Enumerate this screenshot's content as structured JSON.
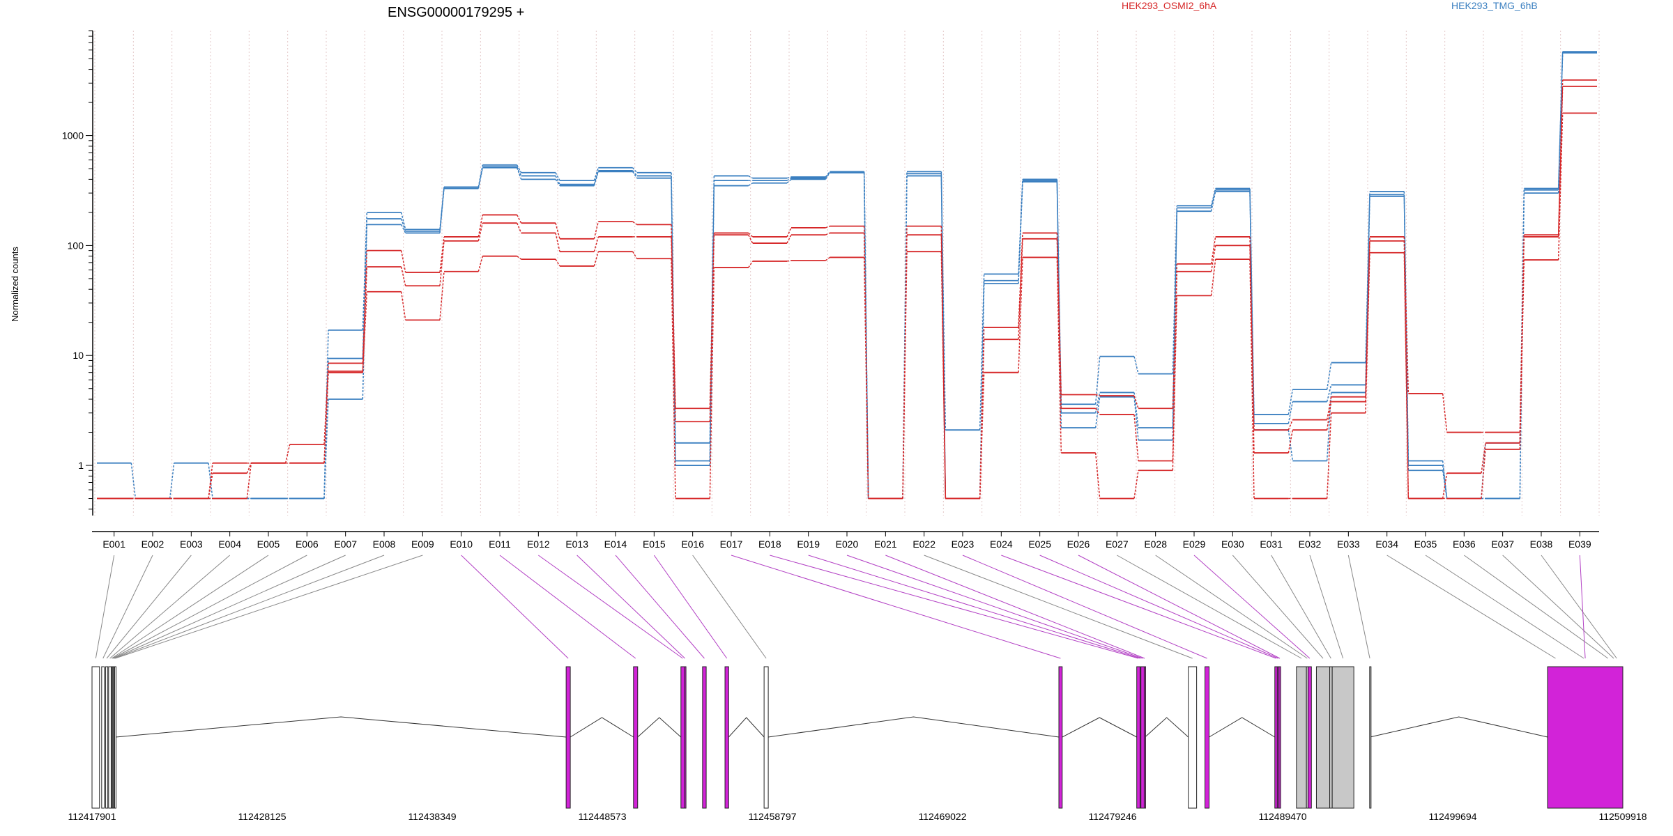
{
  "chart_data": {
    "type": "line",
    "title": "ENSG00000179295 +",
    "ylabel": "Normalized counts",
    "yscale": "log",
    "ylim": [
      0.35,
      9000
    ],
    "yticks": [
      1,
      10,
      100,
      1000
    ],
    "legend": [
      {
        "name": "HEK293_OSMI2_6hA",
        "color": "#d62728"
      },
      {
        "name": "HEK293_TMG_6hB",
        "color": "#3a7fc0"
      }
    ],
    "categories": [
      "E001",
      "E002",
      "E003",
      "E004",
      "E005",
      "E006",
      "E007",
      "E008",
      "E009",
      "E010",
      "E011",
      "E012",
      "E013",
      "E014",
      "E015",
      "E016",
      "E017",
      "E018",
      "E019",
      "E020",
      "E021",
      "E022",
      "E023",
      "E024",
      "E025",
      "E026",
      "E027",
      "E028",
      "E029",
      "E030",
      "E031",
      "E032",
      "E033",
      "E034",
      "E035",
      "E036",
      "E037",
      "E038",
      "E039"
    ],
    "series": [
      {
        "group": "HEK293_TMG_6hB",
        "color": "#3a7fc0",
        "values": [
          1.05,
          0.5,
          1.05,
          0.5,
          0.5,
          0.5,
          17,
          200,
          140,
          340,
          540,
          460,
          390,
          510,
          460,
          1.6,
          430,
          410,
          420,
          470,
          0.5,
          470,
          2.1,
          55,
          400,
          3.6,
          9.8,
          6.8,
          230,
          330,
          2.9,
          4.9,
          8.6,
          310,
          1.1,
          0.5,
          1.6,
          330,
          5800
        ]
      },
      {
        "group": "HEK293_TMG_6hB",
        "color": "#3a7fc0",
        "values": [
          0.5,
          0.5,
          0.5,
          0.5,
          0.5,
          0.5,
          9.4,
          175,
          135,
          340,
          520,
          430,
          360,
          480,
          430,
          1.1,
          390,
          390,
          410,
          460,
          0.5,
          450,
          0.5,
          48,
          390,
          3.0,
          4.6,
          2.2,
          220,
          320,
          2.4,
          3.8,
          5.4,
          290,
          1.0,
          0.5,
          0.5,
          320,
          5700
        ]
      },
      {
        "group": "HEK293_TMG_6hB",
        "color": "#3a7fc0",
        "values": [
          0.5,
          0.5,
          0.5,
          0.5,
          0.5,
          0.5,
          4.0,
          155,
          130,
          330,
          510,
          400,
          350,
          470,
          410,
          1.0,
          350,
          370,
          400,
          460,
          0.5,
          430,
          0.5,
          45,
          380,
          2.2,
          4.2,
          1.7,
          205,
          310,
          2.1,
          1.1,
          4.6,
          280,
          0.9,
          0.5,
          0.5,
          300,
          5650
        ]
      },
      {
        "group": "HEK293_OSMI2_6hA",
        "color": "#d62728",
        "values": [
          0.5,
          0.5,
          0.5,
          1.05,
          1.05,
          1.55,
          8.5,
          90,
          57,
          120,
          190,
          160,
          115,
          165,
          155,
          3.3,
          130,
          120,
          145,
          150,
          0.5,
          150,
          0.5,
          18,
          130,
          4.4,
          4.3,
          3.3,
          68,
          120,
          2.1,
          2.6,
          4.2,
          120,
          4.5,
          2.0,
          2.0,
          125,
          3200
        ]
      },
      {
        "group": "HEK293_OSMI2_6hA",
        "color": "#d62728",
        "values": [
          0.5,
          0.5,
          0.5,
          0.85,
          1.05,
          1.05,
          7.2,
          64,
          43,
          110,
          160,
          130,
          88,
          120,
          120,
          2.5,
          125,
          105,
          125,
          130,
          0.5,
          125,
          0.5,
          14,
          115,
          3.3,
          2.9,
          1.1,
          58,
          100,
          1.3,
          2.1,
          3.8,
          110,
          0.5,
          0.85,
          1.6,
          120,
          2800
        ]
      },
      {
        "group": "HEK293_OSMI2_6hA",
        "color": "#d62728",
        "values": [
          0.5,
          0.5,
          0.5,
          0.5,
          1.05,
          1.05,
          7.0,
          38,
          21,
          58,
          80,
          75,
          65,
          88,
          76,
          0.5,
          63,
          72,
          73,
          78,
          0.5,
          88,
          0.5,
          7.0,
          78,
          1.3,
          0.5,
          0.9,
          35,
          75,
          0.5,
          0.5,
          3.0,
          86,
          0.5,
          0.5,
          1.4,
          74,
          1600
        ]
      }
    ]
  },
  "gene_model": {
    "coordinate_ticks": [
      "112417901",
      "112428125",
      "112438349",
      "112448573",
      "112458797",
      "112469022",
      "112479246",
      "112489470",
      "112499694",
      "112509918"
    ],
    "coordinate_range": [
      112417901,
      112509918
    ],
    "exons": [
      {
        "start": 112417901,
        "end": 112418350,
        "fill": "#ffffff",
        "label_index": 0
      },
      {
        "start": 112418480,
        "end": 112418640,
        "fill": "#ffffff",
        "label_index": 1
      },
      {
        "start": 112418720,
        "end": 112418850,
        "fill": "#ffffff",
        "label_index": 2
      },
      {
        "start": 112418900,
        "end": 112419050,
        "fill": "#ffffff",
        "label_index": 3
      },
      {
        "start": 112419060,
        "end": 112419110,
        "fill": "#ffffff",
        "label_index": 4
      },
      {
        "start": 112419110,
        "end": 112419160,
        "fill": "#ffffff",
        "label_index": 5
      },
      {
        "start": 112419160,
        "end": 112419210,
        "fill": "#ffffff",
        "label_index": 6
      },
      {
        "start": 112419210,
        "end": 112419260,
        "fill": "#ffffff",
        "label_index": 7
      },
      {
        "start": 112419260,
        "end": 112419330,
        "fill": "#ffffff",
        "label_index": 8
      },
      {
        "start": 112446400,
        "end": 112446650,
        "fill": "#d223d8",
        "label_index": 9
      },
      {
        "start": 112450450,
        "end": 112450700,
        "fill": "#d223d8",
        "label_index": 10
      },
      {
        "start": 112453300,
        "end": 112453520,
        "fill": "#d223d8",
        "label_index": 11
      },
      {
        "start": 112453520,
        "end": 112453560,
        "fill": "#d223d8",
        "label_index": 12
      },
      {
        "start": 112454600,
        "end": 112454820,
        "fill": "#d223d8",
        "label_index": 13
      },
      {
        "start": 112455950,
        "end": 112456170,
        "fill": "#d223d8",
        "label_index": 14
      },
      {
        "start": 112458300,
        "end": 112458550,
        "fill": "#ffffff",
        "label_index": 15
      },
      {
        "start": 112476020,
        "end": 112476220,
        "fill": "#d223d8",
        "label_index": 16
      },
      {
        "start": 112480700,
        "end": 112480900,
        "fill": "#d223d8",
        "label_index": 17
      },
      {
        "start": 112480900,
        "end": 112480950,
        "fill": "#d223d8",
        "label_index": 18
      },
      {
        "start": 112480950,
        "end": 112481150,
        "fill": "#d223d8",
        "label_index": 19
      },
      {
        "start": 112481150,
        "end": 112481200,
        "fill": "#d223d8",
        "label_index": 20
      },
      {
        "start": 112483800,
        "end": 112484300,
        "fill": "#ffffff",
        "label_index": 21
      },
      {
        "start": 112484800,
        "end": 112485050,
        "fill": "#d223d8",
        "label_index": 22
      },
      {
        "start": 112489000,
        "end": 112489150,
        "fill": "#d223d8",
        "label_index": 23
      },
      {
        "start": 112489150,
        "end": 112489250,
        "fill": "#d223d8",
        "label_index": 24
      },
      {
        "start": 112489250,
        "end": 112489350,
        "fill": "#d223d8",
        "label_index": 25
      },
      {
        "start": 112490300,
        "end": 112490900,
        "fill": "#c8c8c8",
        "label_index": 26
      },
      {
        "start": 112490900,
        "end": 112491000,
        "fill": "#c8c8c8",
        "label_index": 27
      },
      {
        "start": 112491000,
        "end": 112491200,
        "fill": "#d223d8",
        "label_index": 28
      },
      {
        "start": 112491500,
        "end": 112492300,
        "fill": "#c8c8c8",
        "label_index": 29
      },
      {
        "start": 112492300,
        "end": 112492450,
        "fill": "#c8c8c8",
        "label_index": 30
      },
      {
        "start": 112492450,
        "end": 112493750,
        "fill": "#c8c8c8",
        "label_index": 31
      },
      {
        "start": 112494700,
        "end": 112494720,
        "fill": "#c8c8c8",
        "label_index": 32
      },
      {
        "start": 112505400,
        "end": 112506350,
        "fill": "#c8c8c8",
        "label_index": 33
      },
      {
        "start": 112506350,
        "end": 112508800,
        "fill": "#ffffff",
        "label_index": 34
      },
      {
        "start": 112508800,
        "end": 112509250,
        "fill": "#ffffff",
        "label_index": 35
      },
      {
        "start": 112509250,
        "end": 112509500,
        "fill": "#ffffff",
        "label_index": 36
      },
      {
        "start": 112509500,
        "end": 112509600,
        "fill": "#ffffff",
        "label_index": 37
      },
      {
        "start": 112505400,
        "end": 112509918,
        "fill": "#d223d8",
        "label_index": 38
      }
    ]
  }
}
